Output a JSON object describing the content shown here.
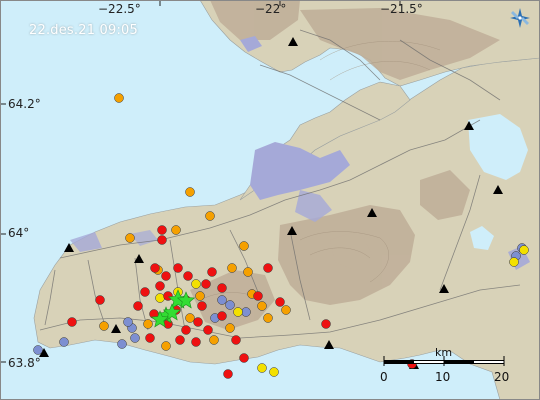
{
  "map": {
    "timestamp": "22.des.21  09:05",
    "longitude_labels": [
      "−22.5°",
      "−22°",
      "−21.5°"
    ],
    "latitude_labels": [
      "64.2°",
      "64°",
      "63.8°"
    ],
    "scale": {
      "unit": "km",
      "ticks": [
        "0",
        "10",
        "20"
      ]
    },
    "colors": {
      "sea": "#cfeefa",
      "land": "#d8d2b8",
      "mountains": "#bfae98",
      "urban": "#a5a9d8",
      "roads": "#6b6b6b",
      "quake_recent": "#ee1111",
      "quake_hours": "#f5a000",
      "quake_day": "#f3e000",
      "quake_older": "#7d8fd1",
      "large_quake_star": "#33dd33"
    },
    "logo_icon": "imo-logo-icon",
    "station_icon": "black-triangle-icon"
  }
}
